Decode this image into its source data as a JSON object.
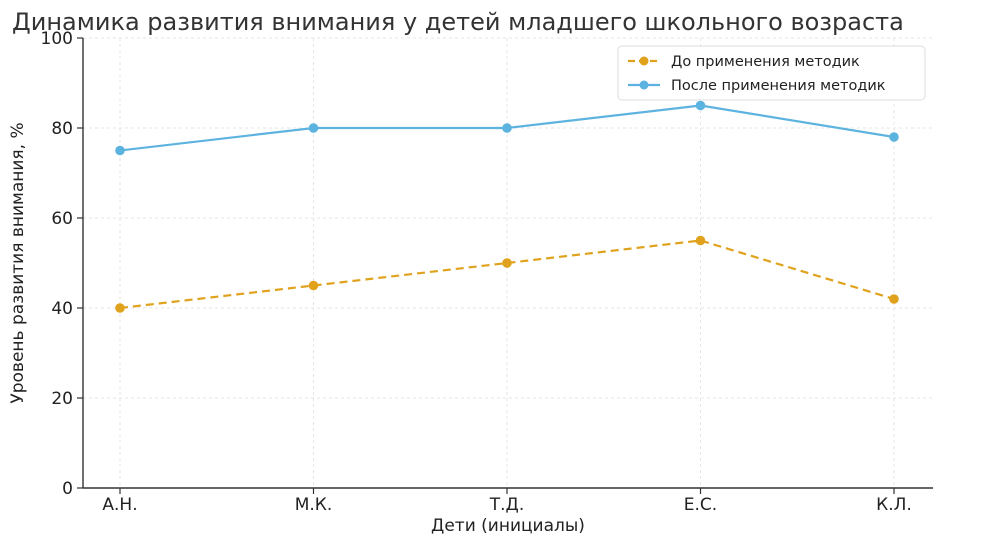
{
  "chart_data": {
    "type": "line",
    "title": "Динамика развития внимания у детей младшего школьного возраста",
    "xlabel": "Дети (инициалы)",
    "ylabel": "Уровень развития внимания, %",
    "categories": [
      "А.Н.",
      "М.К.",
      "Т.Д.",
      "Е.С.",
      "К.Л."
    ],
    "ylim": [
      0,
      100
    ],
    "yticks": [
      "0",
      "20",
      "40",
      "60",
      "80",
      "100"
    ],
    "grid": true,
    "legend_position": "top-right",
    "series": [
      {
        "name": "До применения методик",
        "values": [
          40,
          45,
          50,
          55,
          42
        ],
        "color": "#E0A21C",
        "line_style": "dashed",
        "marker": "circle"
      },
      {
        "name": "После применения методик",
        "values": [
          75,
          80,
          80,
          85,
          78
        ],
        "color": "#5DB3E0",
        "line_style": "solid",
        "marker": "circle"
      }
    ]
  }
}
